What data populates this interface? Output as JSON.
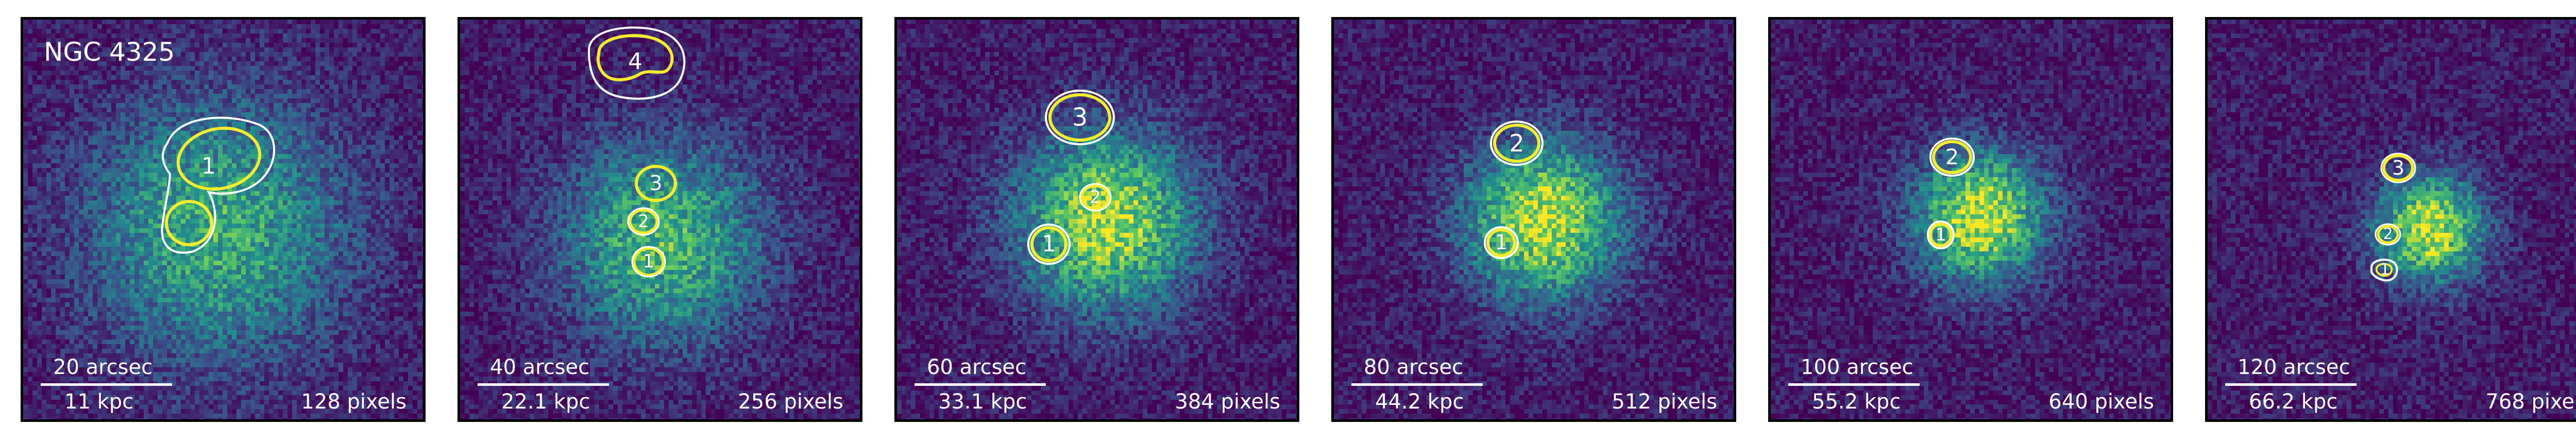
{
  "figure": {
    "galaxy_name": "NGC 4325",
    "colormap": [
      "#440154",
      "#3b518b",
      "#21908d",
      "#5dc963",
      "#fde725"
    ],
    "contour_colors": {
      "outer": "#ffffff",
      "inner": "#f4ec2c"
    }
  },
  "panels": [
    {
      "arcsec": "20 arcsec",
      "kpc": "11 kpc",
      "pixels": "128 pixels",
      "level": 0.55,
      "regions": [
        "1"
      ]
    },
    {
      "arcsec": "40 arcsec",
      "kpc": "22.1 kpc",
      "pixels": "256 pixels",
      "level": 0.6,
      "regions": [
        "1",
        "2",
        "3",
        "4"
      ]
    },
    {
      "arcsec": "60 arcsec",
      "kpc": "33.1 kpc",
      "pixels": "384 pixels",
      "level": 0.8,
      "regions": [
        "1",
        "2",
        "3"
      ]
    },
    {
      "arcsec": "80 arcsec",
      "kpc": "44.2 kpc",
      "pixels": "512 pixels",
      "level": 0.85,
      "regions": [
        "1",
        "2"
      ]
    },
    {
      "arcsec": "100 arcsec",
      "kpc": "55.2 kpc",
      "pixels": "640 pixels",
      "level": 0.85,
      "regions": [
        "1",
        "2"
      ]
    },
    {
      "arcsec": "120 arcsec",
      "kpc": "66.2 kpc",
      "pixels": "768 pixels",
      "level": 0.85,
      "regions": [
        "1",
        "2",
        "3"
      ]
    }
  ]
}
